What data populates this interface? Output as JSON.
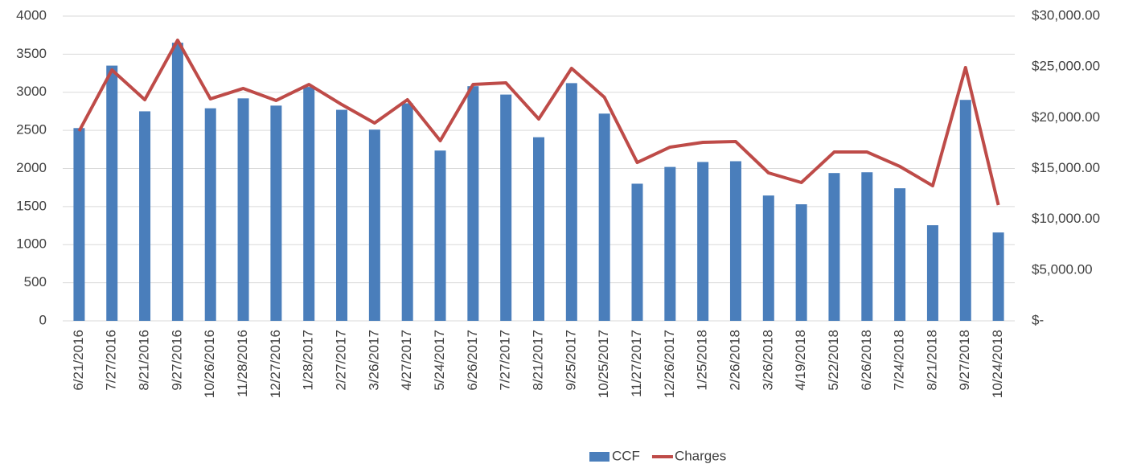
{
  "chart_data": {
    "type": "bar",
    "categories": [
      "6/21/2016",
      "7/27/2016",
      "8/21/2016",
      "9/27/2016",
      "10/26/2016",
      "11/28/2016",
      "12/27/2016",
      "1/28/2017",
      "2/27/2017",
      "3/26/2017",
      "4/27/2017",
      "5/24/2017",
      "6/26/2017",
      "7/27/2017",
      "8/21/2017",
      "9/25/2017",
      "10/25/2017",
      "11/27/2017",
      "12/26/2017",
      "1/25/2018",
      "2/26/2018",
      "3/26/2018",
      "4/19/2018",
      "5/22/2018",
      "6/26/2018",
      "7/24/2018",
      "8/21/2018",
      "9/27/2018",
      "10/24/2018"
    ],
    "series": [
      {
        "name": "CCF",
        "type": "bar",
        "color": "#4a7ebb",
        "values": [
          2530,
          3350,
          2750,
          3650,
          2790,
          2920,
          2825,
          3070,
          2770,
          2510,
          2855,
          2235,
          3080,
          2970,
          2410,
          3120,
          2720,
          1800,
          2020,
          2085,
          2095,
          1645,
          1530,
          1940,
          1950,
          1740,
          1255,
          2900,
          1160
        ]
      },
      {
        "name": "Charges",
        "type": "line",
        "axis": "y2",
        "color": "#be4b48",
        "values": [
          18680,
          24700,
          21770,
          27625,
          21850,
          22880,
          21690,
          23270,
          21290,
          19470,
          21770,
          17730,
          23270,
          23430,
          19870,
          24855,
          22005,
          15590,
          17100,
          17570,
          17650,
          14565,
          13615,
          16620,
          16620,
          15200,
          13300,
          24935,
          11400
        ]
      }
    ],
    "ylim": [
      0,
      4000
    ],
    "yticks": [
      0,
      500,
      1000,
      1500,
      2000,
      2500,
      3000,
      3500,
      4000
    ],
    "y2lim": [
      0,
      30000
    ],
    "y2ticks": [
      {
        "value": 0,
        "label": "$-"
      },
      {
        "value": 5000,
        "label": "$5,000.00"
      },
      {
        "value": 10000,
        "label": "$10,000.00"
      },
      {
        "value": 15000,
        "label": "$15,000.00"
      },
      {
        "value": 20000,
        "label": "$20,000.00"
      },
      {
        "value": 25000,
        "label": "$25,000.00"
      },
      {
        "value": 30000,
        "label": "$30,000.00"
      }
    ],
    "grid": true,
    "legend": "bottom"
  }
}
